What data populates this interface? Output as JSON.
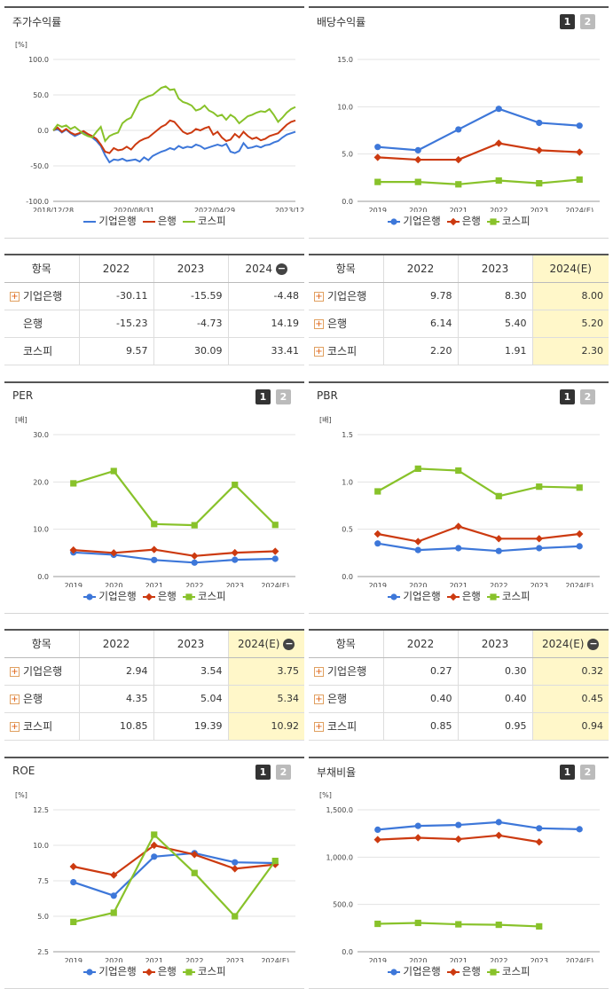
{
  "colors": {
    "ibk": "#3d77d9",
    "bank": "#cc3a10",
    "kospi": "#88c22a"
  },
  "panels": [
    {
      "id": "stock",
      "title": "주가수익률",
      "chart_data": {
        "type": "line",
        "unit": "[%]",
        "x_tick_labels": [
          "2018/12/28",
          "2020/08/31",
          "2022/04/29",
          "2023/12/28"
        ],
        "y_tick_labels": [
          "100.0",
          "50.0",
          "0.0",
          "-50.0",
          "-100.0"
        ],
        "ylim": [
          -100,
          100
        ],
        "series": [
          {
            "name": "기업은행",
            "key": "ibk",
            "values": [
              0,
              2,
              -3,
              1,
              -4,
              -8,
              -5,
              -2,
              -6,
              -10,
              -15,
              -22,
              -35,
              -45,
              -41,
              -42,
              -40,
              -43,
              -42,
              -41,
              -44,
              -38,
              -42,
              -36,
              -33,
              -30,
              -28,
              -25,
              -27,
              -22,
              -25,
              -23,
              -24,
              -20,
              -22,
              -26,
              -24,
              -22,
              -20,
              -22,
              -19,
              -30,
              -32,
              -29,
              -18,
              -25,
              -24,
              -22,
              -24,
              -21,
              -20,
              -17,
              -15,
              -10,
              -6,
              -4,
              -2
            ]
          },
          {
            "name": "은행",
            "key": "bank",
            "values": [
              0,
              4,
              -2,
              2,
              -3,
              -6,
              -4,
              -1,
              -5,
              -8,
              -12,
              -20,
              -30,
              -32,
              -25,
              -28,
              -27,
              -23,
              -27,
              -20,
              -15,
              -12,
              -10,
              -5,
              0,
              5,
              8,
              14,
              12,
              5,
              -2,
              -5,
              -3,
              2,
              0,
              3,
              5,
              -6,
              -2,
              -10,
              -15,
              -13,
              -5,
              -10,
              -2,
              -8,
              -12,
              -10,
              -14,
              -12,
              -8,
              -6,
              -4,
              2,
              8,
              12,
              14
            ]
          },
          {
            "name": "코스피",
            "key": "kospi",
            "values": [
              0,
              8,
              5,
              7,
              2,
              5,
              0,
              -5,
              -8,
              -10,
              -2,
              5,
              -15,
              -8,
              -5,
              -3,
              10,
              15,
              18,
              30,
              42,
              45,
              48,
              50,
              55,
              60,
              62,
              57,
              58,
              45,
              40,
              38,
              35,
              28,
              30,
              35,
              28,
              25,
              20,
              22,
              15,
              22,
              18,
              10,
              15,
              20,
              22,
              25,
              27,
              26,
              30,
              22,
              12,
              18,
              25,
              30,
              33
            ]
          }
        ]
      }
    },
    {
      "id": "dividend",
      "title": "배당수익률",
      "chart_data": {
        "type": "line",
        "unit": "",
        "categories": [
          "2019",
          "2020",
          "2021",
          "2022",
          "2023",
          "2024(E)"
        ],
        "y_tick_labels": [
          "15.0",
          "10.0",
          "5.0",
          "0.0"
        ],
        "ylim": [
          0,
          15
        ],
        "series": [
          {
            "name": "기업은행",
            "key": "ibk",
            "values": [
              5.75,
              5.4,
              7.6,
              9.78,
              8.3,
              8.0
            ]
          },
          {
            "name": "은행",
            "key": "bank",
            "values": [
              4.65,
              4.4,
              4.4,
              6.14,
              5.4,
              5.2
            ]
          },
          {
            "name": "코스피",
            "key": "kospi",
            "values": [
              2.05,
              2.05,
              1.8,
              2.2,
              1.91,
              2.3
            ]
          }
        ]
      }
    },
    {
      "id": "per",
      "title": "PER",
      "chart_data": {
        "type": "line",
        "unit": "[배]",
        "categories": [
          "2019",
          "2020",
          "2021",
          "2022",
          "2023",
          "2024(E)"
        ],
        "y_tick_labels": [
          "30.0",
          "20.0",
          "10.0",
          "0.0"
        ],
        "ylim": [
          0,
          30
        ],
        "series": [
          {
            "name": "기업은행",
            "key": "ibk",
            "values": [
              5.1,
              4.6,
              3.5,
              2.94,
              3.54,
              3.75
            ]
          },
          {
            "name": "은행",
            "key": "bank",
            "values": [
              5.6,
              5.0,
              5.7,
              4.35,
              5.04,
              5.34
            ]
          },
          {
            "name": "코스피",
            "key": "kospi",
            "values": [
              19.7,
              22.3,
              11.1,
              10.85,
              19.39,
              10.92
            ]
          }
        ]
      }
    },
    {
      "id": "pbr",
      "title": "PBR",
      "chart_data": {
        "type": "line",
        "unit": "[배]",
        "categories": [
          "2019",
          "2020",
          "2021",
          "2022",
          "2023",
          "2024(E)"
        ],
        "y_tick_labels": [
          "1.5",
          "1.0",
          "0.5",
          "0.0"
        ],
        "ylim": [
          0,
          1.5
        ],
        "series": [
          {
            "name": "기업은행",
            "key": "ibk",
            "values": [
              0.35,
              0.28,
              0.3,
              0.27,
              0.3,
              0.32
            ]
          },
          {
            "name": "은행",
            "key": "bank",
            "values": [
              0.45,
              0.37,
              0.53,
              0.4,
              0.4,
              0.45
            ]
          },
          {
            "name": "코스피",
            "key": "kospi",
            "values": [
              0.9,
              1.14,
              1.12,
              0.85,
              0.95,
              0.94
            ]
          }
        ]
      }
    },
    {
      "id": "roe",
      "title": "ROE",
      "chart_data": {
        "type": "line",
        "unit": "[%]",
        "categories": [
          "2019",
          "2020",
          "2021",
          "2022",
          "2023",
          "2024(E)"
        ],
        "y_tick_labels": [
          "12.5",
          "10.0",
          "7.5",
          "5.0",
          "2.5"
        ],
        "ylim": [
          2.5,
          12.5
        ],
        "series": [
          {
            "name": "기업은행",
            "key": "ibk",
            "values": [
              7.4,
              6.45,
              9.2,
              9.45,
              8.8,
              8.75
            ]
          },
          {
            "name": "은행",
            "key": "bank",
            "values": [
              8.5,
              7.9,
              10.0,
              9.35,
              8.35,
              8.65
            ]
          },
          {
            "name": "코스피",
            "key": "kospi",
            "values": [
              4.6,
              5.25,
              10.75,
              8.05,
              5.0,
              8.9
            ]
          }
        ]
      }
    },
    {
      "id": "debt",
      "title": "부채비율",
      "chart_data": {
        "type": "line",
        "unit": "[%]",
        "categories": [
          "2019",
          "2020",
          "2021",
          "2022",
          "2023",
          "2024(E)"
        ],
        "y_tick_labels": [
          "1,500.0",
          "1,000.0",
          "500.0",
          "0.0"
        ],
        "ylim": [
          0,
          1500
        ],
        "series": [
          {
            "name": "기업은행",
            "key": "ibk",
            "values": [
              1290,
              1330,
              1340,
              1370,
              1305,
              1295
            ]
          },
          {
            "name": "은행",
            "key": "bank",
            "values": [
              1185,
              1205,
              1190,
              1230,
              1160,
              null
            ]
          },
          {
            "name": "코스피",
            "key": "kospi",
            "values": [
              295,
              305,
              290,
              285,
              268,
              null
            ]
          }
        ]
      }
    }
  ],
  "tables": [
    {
      "id": "stock-table",
      "header": [
        "항목",
        "2022",
        "2023",
        "2024"
      ],
      "has_minus": true,
      "highlight_last": false,
      "rows": [
        {
          "name": "기업은행",
          "plus": true,
          "values": [
            "-30.11",
            "-15.59",
            "-4.48"
          ]
        },
        {
          "name": "은행",
          "plus": false,
          "values": [
            "-15.23",
            "-4.73",
            "14.19"
          ]
        },
        {
          "name": "코스피",
          "plus": false,
          "values": [
            "9.57",
            "30.09",
            "33.41"
          ]
        }
      ]
    },
    {
      "id": "dividend-table",
      "header": [
        "항목",
        "2022",
        "2023",
        "2024(E)"
      ],
      "has_minus": false,
      "highlight_last": true,
      "rows": [
        {
          "name": "기업은행",
          "plus": true,
          "values": [
            "9.78",
            "8.30",
            "8.00"
          ]
        },
        {
          "name": "은행",
          "plus": true,
          "values": [
            "6.14",
            "5.40",
            "5.20"
          ]
        },
        {
          "name": "코스피",
          "plus": true,
          "values": [
            "2.20",
            "1.91",
            "2.30"
          ]
        }
      ]
    },
    {
      "id": "per-table",
      "header": [
        "항목",
        "2022",
        "2023",
        "2024(E)"
      ],
      "has_minus": true,
      "highlight_last": true,
      "rows": [
        {
          "name": "기업은행",
          "plus": true,
          "values": [
            "2.94",
            "3.54",
            "3.75"
          ]
        },
        {
          "name": "은행",
          "plus": true,
          "values": [
            "4.35",
            "5.04",
            "5.34"
          ]
        },
        {
          "name": "코스피",
          "plus": true,
          "values": [
            "10.85",
            "19.39",
            "10.92"
          ]
        }
      ]
    },
    {
      "id": "pbr-table",
      "header": [
        "항목",
        "2022",
        "2023",
        "2024(E)"
      ],
      "has_minus": true,
      "highlight_last": true,
      "rows": [
        {
          "name": "기업은행",
          "plus": true,
          "values": [
            "0.27",
            "0.30",
            "0.32"
          ]
        },
        {
          "name": "은행",
          "plus": true,
          "values": [
            "0.40",
            "0.40",
            "0.45"
          ]
        },
        {
          "name": "코스피",
          "plus": true,
          "values": [
            "0.85",
            "0.95",
            "0.94"
          ]
        }
      ]
    }
  ]
}
